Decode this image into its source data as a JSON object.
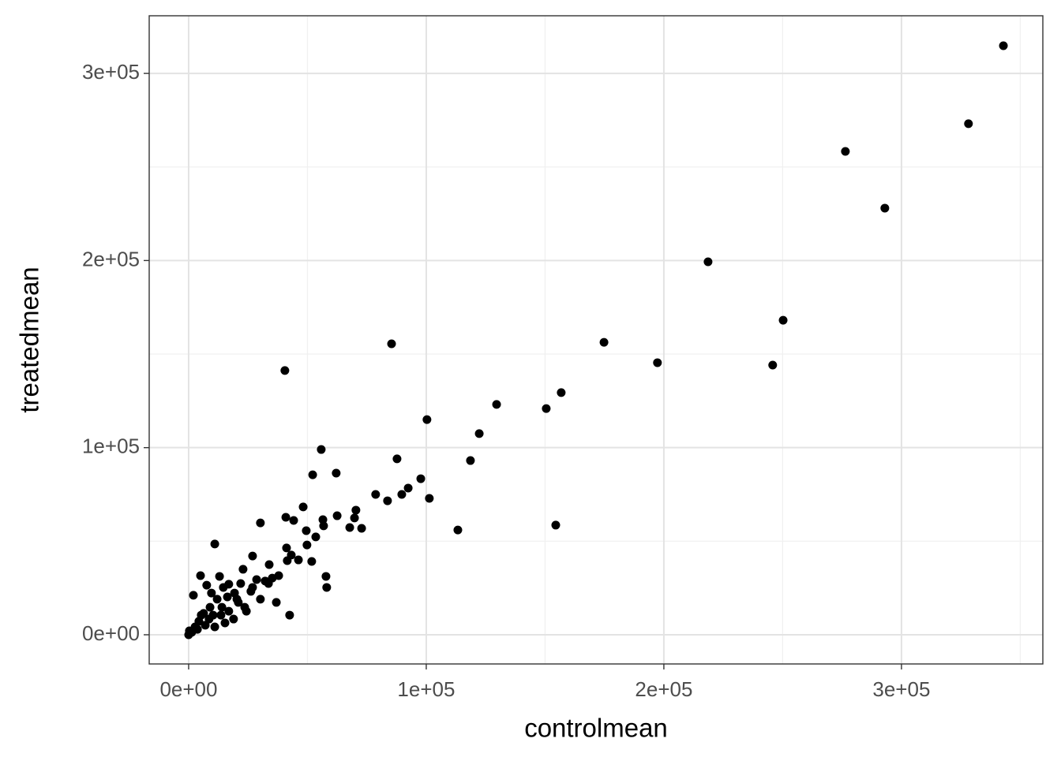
{
  "chart_data": {
    "type": "scatter",
    "x_label": "controlmean",
    "y_label": "treatedmean",
    "color": "#000000",
    "grid": true,
    "xlim": [
      -16600,
      359500
    ],
    "ylim": [
      -15600,
      330800
    ],
    "xticks": [
      {
        "value": 0,
        "label": "0e+00"
      },
      {
        "value": 100000,
        "label": "1e+05"
      },
      {
        "value": 200000,
        "label": "2e+05"
      },
      {
        "value": 300000,
        "label": "3e+05"
      }
    ],
    "yticks": [
      {
        "value": 0,
        "label": "0e+00"
      },
      {
        "value": 100000,
        "label": "1e+05"
      },
      {
        "value": 200000,
        "label": "2e+05"
      },
      {
        "value": 300000,
        "label": "3e+05"
      }
    ],
    "xminor": [
      50000,
      150000,
      250000,
      350000
    ],
    "yminor": [
      50000,
      150000,
      250000
    ],
    "x": [
      342900,
      328200,
      276400,
      293000,
      218600,
      250200,
      245800,
      197300,
      174800,
      85400,
      40500,
      156800,
      150500,
      129600,
      100300,
      122300,
      118600,
      101300,
      113300,
      154500,
      87700,
      97700,
      92400,
      89700,
      83700,
      78700,
      55800,
      62100,
      52200,
      70400,
      69800,
      72800,
      67800,
      62500,
      56500,
      56800,
      48200,
      40900,
      44200,
      53500,
      49500,
      30200,
      49800,
      41200,
      43200,
      46200,
      51800,
      41500,
      57800,
      58100,
      42500,
      11000,
      26900,
      33900,
      22900,
      37900,
      32200,
      36900,
      2000,
      5000,
      13000,
      7600,
      16900,
      19300,
      26200,
      30200,
      24300,
      18900,
      10300,
      14000,
      20900,
      7000,
      3700,
      1300,
      0,
      15300,
      11000,
      8600,
      4300,
      12000,
      16300,
      9000,
      23600,
      300,
      2700,
      6300,
      16900,
      26900,
      20300,
      33600,
      5300,
      13600,
      9600,
      14600,
      21900,
      28600,
      35200
    ],
    "y": [
      314800,
      273100,
      258300,
      228000,
      199300,
      168100,
      144100,
      145400,
      156300,
      155500,
      141200,
      129400,
      120900,
      123100,
      115000,
      107500,
      93100,
      72900,
      56000,
      58600,
      94000,
      83400,
      78400,
      75000,
      71600,
      75000,
      99000,
      86400,
      85500,
      66600,
      62400,
      56900,
      57300,
      63600,
      61500,
      58200,
      68300,
      62800,
      61100,
      52300,
      55600,
      59800,
      48000,
      46400,
      42600,
      40000,
      39200,
      39600,
      31200,
      25300,
      10500,
      48500,
      42100,
      37500,
      35000,
      31600,
      28700,
      17300,
      21100,
      31600,
      31200,
      26500,
      27000,
      22300,
      23200,
      19000,
      12600,
      8400,
      10500,
      14700,
      17300,
      5100,
      2900,
      1300,
      0,
      6300,
      4200,
      8400,
      7200,
      19000,
      20200,
      14700,
      14700,
      2100,
      4200,
      11400,
      12600,
      25300,
      19000,
      27400,
      10500,
      10500,
      22300,
      25300,
      27400,
      29500,
      30300
    ]
  }
}
